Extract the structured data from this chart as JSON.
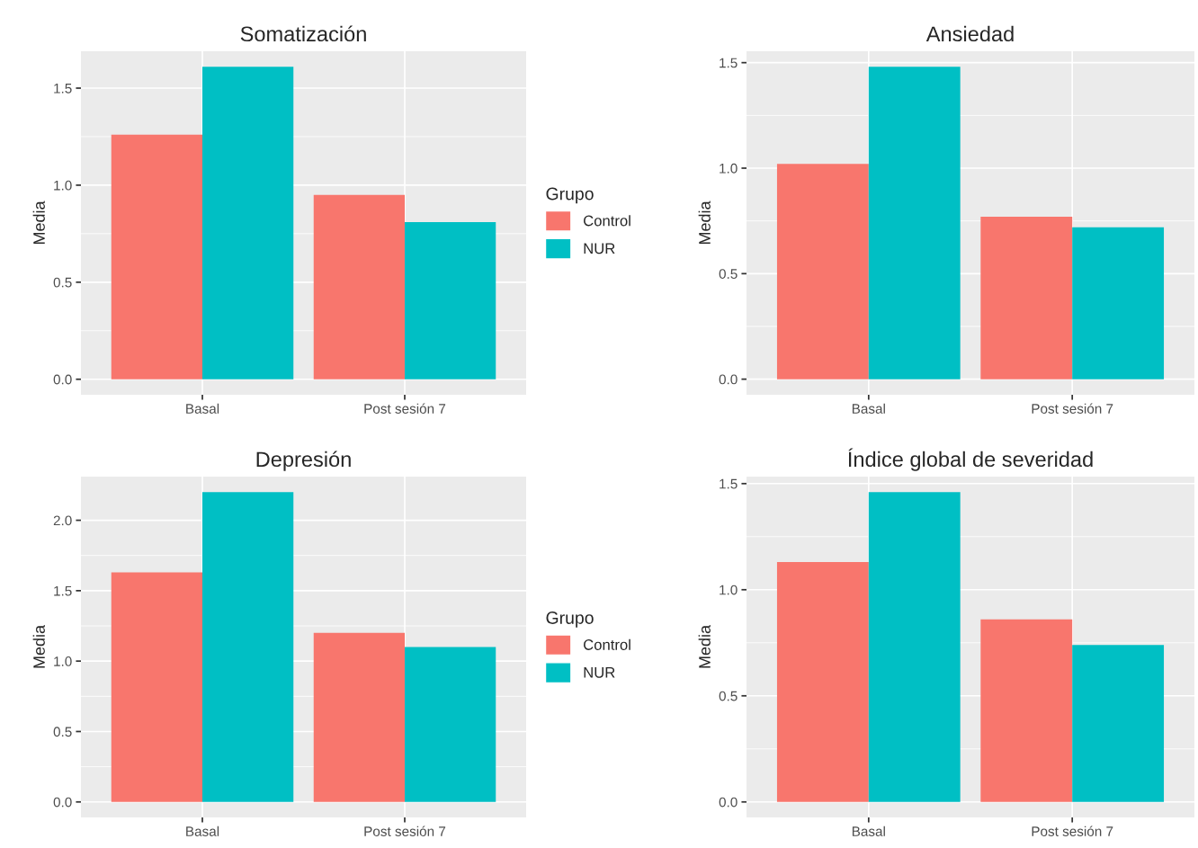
{
  "chart_data": [
    {
      "type": "bar",
      "title": "Somatización",
      "ylabel": "Media",
      "categories": [
        "Basal",
        "Post sesión 7"
      ],
      "series": [
        {
          "name": "Control",
          "color": "#f8766d",
          "values": [
            1.26,
            0.95
          ]
        },
        {
          "name": "NUR",
          "color": "#00bfc4",
          "values": [
            1.61,
            0.81
          ]
        }
      ],
      "ylim": [
        -0.08,
        1.69
      ],
      "yticks": [
        {
          "value": 0,
          "label": "0.0"
        },
        {
          "value": 0.5,
          "label": "0.5"
        },
        {
          "value": 1,
          "label": "1.0"
        },
        {
          "value": 1.5,
          "label": "1.5"
        }
      ],
      "grid": true,
      "legend": "right",
      "legend_title": "Grupo"
    },
    {
      "type": "bar",
      "title": "Ansiedad",
      "ylabel": "Media",
      "categories": [
        "Basal",
        "Post sesión 7"
      ],
      "series": [
        {
          "color": "#f8766d",
          "values": [
            1.02,
            0.77
          ]
        },
        {
          "color": "#00bfc4",
          "values": [
            1.48,
            0.72
          ]
        }
      ],
      "ylim": [
        -0.074,
        1.554
      ],
      "yticks": [
        {
          "value": 0,
          "label": "0.0"
        },
        {
          "value": 0.5,
          "label": "0.5"
        },
        {
          "value": 1,
          "label": "1.0"
        },
        {
          "value": 1.5,
          "label": "1.5"
        }
      ],
      "grid": true
    },
    {
      "type": "bar",
      "title": "Depresión",
      "ylabel": "Media",
      "categories": [
        "Basal",
        "Post sesión 7"
      ],
      "series": [
        {
          "name": "Control",
          "color": "#f8766d",
          "values": [
            1.63,
            1.2
          ]
        },
        {
          "name": "NUR",
          "color": "#00bfc4",
          "values": [
            2.2,
            1.1
          ]
        }
      ],
      "ylim": [
        -0.11,
        2.31
      ],
      "yticks": [
        {
          "value": 0,
          "label": "0.0"
        },
        {
          "value": 0.5,
          "label": "0.5"
        },
        {
          "value": 1,
          "label": "1.0"
        },
        {
          "value": 1.5,
          "label": "1.5"
        },
        {
          "value": 2,
          "label": "2.0"
        }
      ],
      "grid": true,
      "legend": "right",
      "legend_title": "Grupo"
    },
    {
      "type": "bar",
      "title": "Índice global de severidad",
      "ylabel": "Media",
      "categories": [
        "Basal",
        "Post sesión 7"
      ],
      "series": [
        {
          "color": "#f8766d",
          "values": [
            1.13,
            0.86
          ]
        },
        {
          "color": "#00bfc4",
          "values": [
            1.46,
            0.74
          ]
        }
      ],
      "ylim": [
        -0.073,
        1.533
      ],
      "yticks": [
        {
          "value": 0,
          "label": "0.0"
        },
        {
          "value": 0.5,
          "label": "0.5"
        },
        {
          "value": 1,
          "label": "1.0"
        },
        {
          "value": 1.5,
          "label": "1.5"
        }
      ],
      "grid": true
    }
  ]
}
